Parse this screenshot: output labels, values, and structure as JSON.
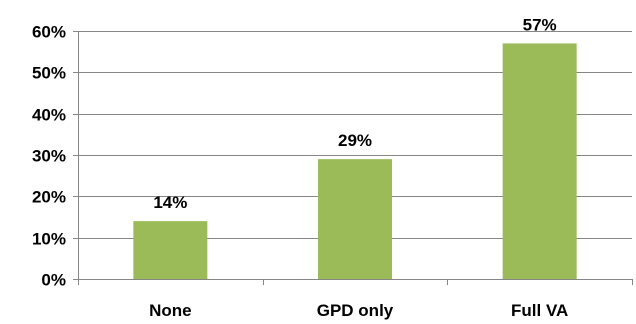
{
  "chart_data": {
    "type": "bar",
    "categories": [
      "None",
      "GPD only",
      "Full VA"
    ],
    "values": [
      14,
      29,
      57
    ],
    "data_labels": [
      "14%",
      "29%",
      "57%"
    ],
    "yticks": [
      0,
      10,
      20,
      30,
      40,
      50,
      60
    ],
    "ytick_labels": [
      "0%",
      "10%",
      "20%",
      "30%",
      "40%",
      "50%",
      "60%"
    ],
    "ylim": [
      0,
      60
    ],
    "grid": true,
    "legend": "none",
    "title": "",
    "xlabel": "",
    "ylabel": "",
    "colors": {
      "bar": "#9bbb59",
      "grid": "#868686",
      "axis": "#868686"
    }
  }
}
